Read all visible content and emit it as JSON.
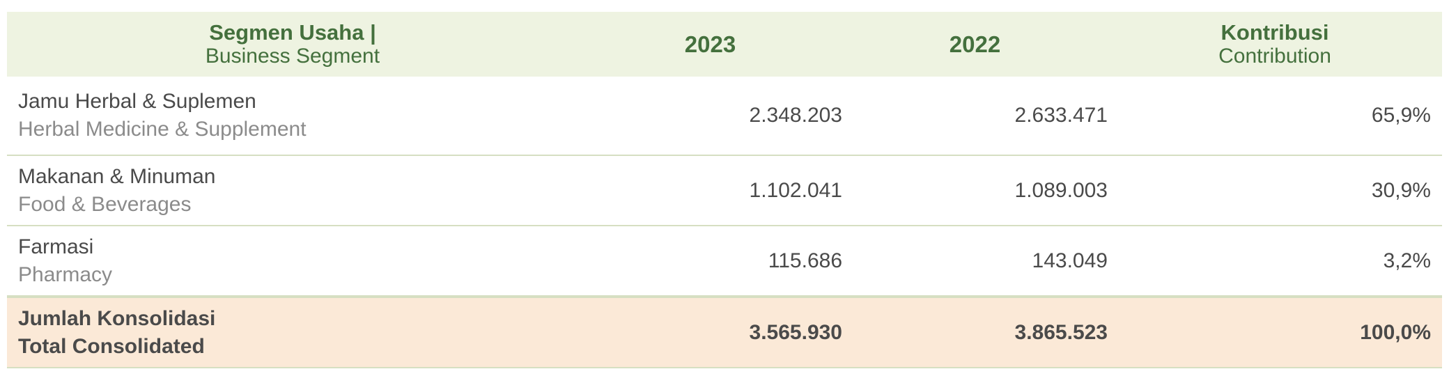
{
  "header": {
    "segment_id": "Segmen Usaha |",
    "segment_en": "Business Segment",
    "year_1": "2023",
    "year_2": "2022",
    "contribution_id": "Kontribusi",
    "contribution_en": "Contribution"
  },
  "rows": [
    {
      "segment_id": "Jamu Herbal & Suplemen",
      "segment_en": "Herbal Medicine & Supplement",
      "value_2023": "2.348.203",
      "value_2022": "2.633.471",
      "contribution": "65,9%"
    },
    {
      "segment_id": "Makanan & Minuman",
      "segment_en": "Food & Beverages",
      "value_2023": "1.102.041",
      "value_2022": "1.089.003",
      "contribution": "30,9%"
    },
    {
      "segment_id": "Farmasi",
      "segment_en": "Pharmacy",
      "value_2023": "115.686",
      "value_2022": "143.049",
      "contribution": "3,2%"
    }
  ],
  "total": {
    "label_id": "Jumlah Konsolidasi",
    "label_en": "Total Consolidated",
    "value_2023": "3.565.930",
    "value_2022": "3.865.523",
    "contribution": "100,0%"
  },
  "colors": {
    "header_bg": "#eef3e1",
    "header_text": "#44703d",
    "total_bg": "#fbe9d7",
    "divider": "#d6dfc2",
    "secondary_text": "#8b8b8b"
  }
}
